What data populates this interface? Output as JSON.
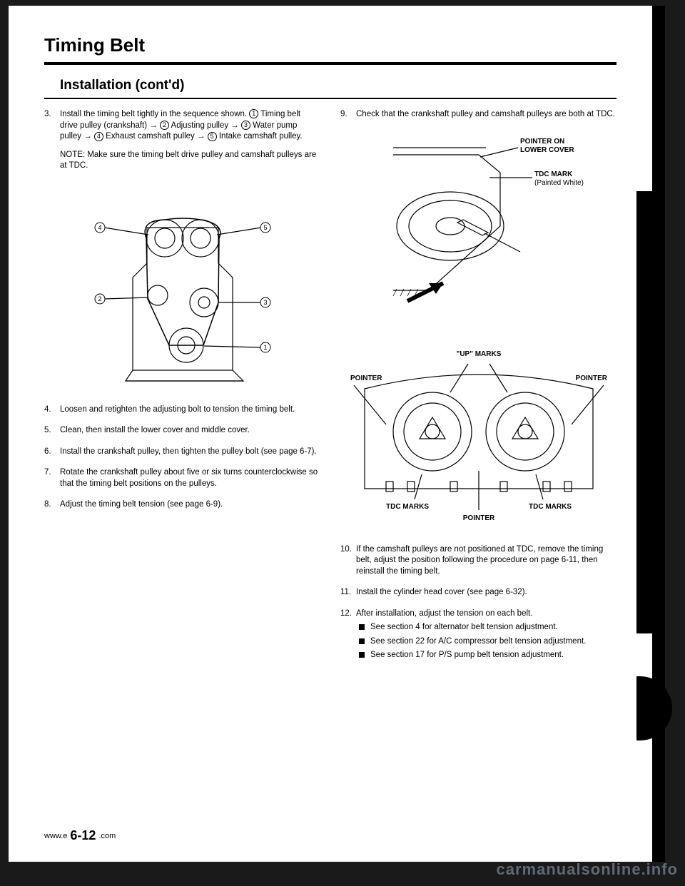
{
  "title": "Timing Belt",
  "subtitle": "Installation (cont'd)",
  "left_steps": [
    {
      "n": "3.",
      "text_html": "Install the timing belt tightly in the sequence shown. <span class='circ'>1</span> Timing belt drive pulley (crankshaft) → <span class='circ'>2</span> Adjusting pulley → <span class='circ'>3</span> Water pump pulley → <span class='circ'>4</span> Exhaust camshaft pulley → <span class='circ'>5</span> Intake camshaft pulley.",
      "note": "NOTE: Make sure the timing belt drive pulley and camshaft pulleys are at TDC."
    },
    {
      "n": "4.",
      "text": "Loosen and retighten the adjusting bolt to tension the timing belt."
    },
    {
      "n": "5.",
      "text": "Clean, then install the lower cover and middle cover."
    },
    {
      "n": "6.",
      "text": "Install the crankshaft pulley, then tighten the pulley bolt (see page 6-7)."
    },
    {
      "n": "7.",
      "text": "Rotate the crankshaft pulley about five or six turns counterclockwise so that the timing belt positions on the pulleys."
    },
    {
      "n": "8.",
      "text": "Adjust the timing belt tension (see page 6-9)."
    }
  ],
  "right_steps": [
    {
      "n": "9.",
      "text": "Check that the crankshaft pulley and camshaft pulleys are both at TDC."
    },
    {
      "n": "10.",
      "text": "If the camshaft pulleys are not positioned at TDC, remove the timing belt, adjust the position following the procedure on page 6-11, then reinstall the timing belt."
    },
    {
      "n": "11.",
      "text": "Install the cylinder head cover (see page 6-32)."
    },
    {
      "n": "12.",
      "text": "After installation, adjust the tension on each belt.",
      "subs": [
        "See section 4 for alternator belt tension adjustment.",
        "See section 22 for A/C compressor belt tension adjustment.",
        "See section 17 for P/S pump belt tension adjustment."
      ]
    }
  ],
  "fig1_labels": {
    "l1": "1",
    "l2": "2",
    "l3": "3",
    "l4": "4",
    "l5": "5"
  },
  "fig2_labels": {
    "pointer_on": "POINTER ON",
    "lower_cover": "LOWER COVER",
    "tdc_mark": "TDC MARK",
    "painted": "(Painted White)"
  },
  "fig3_labels": {
    "up_marks": "\"UP\" MARKS",
    "pointer": "POINTER",
    "tdc_marks": "TDC MARKS"
  },
  "footer_site": "www.emanualpro.com",
  "page_number": "6-12",
  "watermark": "carmanualsonline.info"
}
